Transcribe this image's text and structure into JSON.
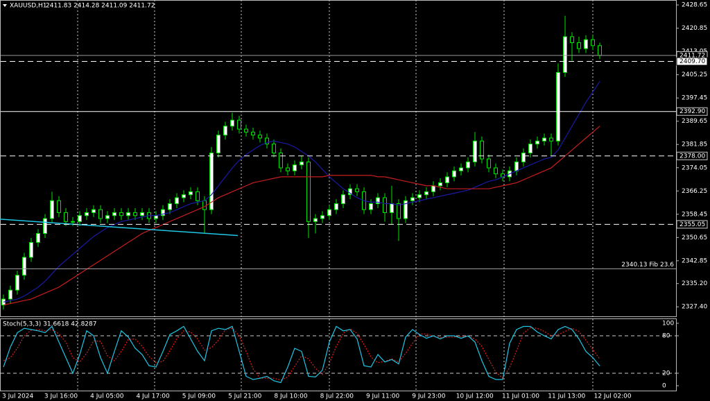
{
  "chart_data": {
    "type": "candlestick",
    "title": "XAUUSD,H1",
    "subtitle": "2411.83 2414.28 2411.09 2411.72",
    "up_color": "#ffffff",
    "down_color": "#000000",
    "wick_color": "#00e600",
    "ylim": [
      2324.2,
      2430.3
    ],
    "yticks": [
      2428.65,
      2420.85,
      2413.05,
      2405.25,
      2397.45,
      2389.65,
      2381.85,
      2374.05,
      2366.25,
      2358.45,
      2350.65,
      2342.85,
      {
        "value": 2335.2,
        "label": "2335.20"
      },
      {
        "value": 2327.4,
        "label": "2327.40"
      }
    ],
    "x_labels": [
      "3 Jul 2024",
      "3 Jul 16:00",
      "4 Jul 05:00",
      "4 Jul 17:00",
      "5 Jul 09:00",
      "5 Jul 21:00",
      "8 Jul 10:00",
      "8 Jul 22:00",
      "9 Jul 11:00",
      "9 Jul 23:00",
      "10 Jul 12:00",
      "11 Jul 01:00",
      "11 Jul 13:00",
      "12 Jul 02:00"
    ],
    "candles": {
      "open": [
        2328,
        2330,
        2333,
        2338,
        2344,
        2349,
        2352,
        2357,
        2363,
        2359,
        2356,
        2356,
        2358,
        2359,
        2360,
        2357,
        2358,
        2359,
        2358,
        2359,
        2358,
        2359,
        2357,
        2358,
        2360,
        2362,
        2364,
        2365,
        2366,
        2363,
        2360,
        2379,
        2385,
        2388,
        2390,
        2387,
        2386,
        2385,
        2384,
        2382,
        2379,
        2374,
        2373,
        2375,
        2376,
        2356,
        2357,
        2358,
        2360,
        2362,
        2365,
        2367,
        2366,
        2360,
        2362,
        2364,
        2359,
        2362,
        2357,
        2363,
        2364,
        2365,
        2366,
        2368,
        2369,
        2371,
        2373,
        2374,
        2376,
        2383,
        2377,
        2374,
        2372,
        2371,
        2373,
        2376,
        2379,
        2382,
        2383,
        2384,
        2383,
        2406,
        2418,
        2416,
        2414,
        2417,
        2415
      ],
      "high": [
        2331.5,
        2334.5,
        2339.5,
        2345.5,
        2350.5,
        2353.5,
        2358.5,
        2366,
        2364.5,
        2360.5,
        2357.5,
        2359.5,
        2360.5,
        2361.5,
        2361.5,
        2359.5,
        2360.5,
        2360.5,
        2360.5,
        2360.5,
        2360.5,
        2360.5,
        2359.5,
        2361.5,
        2363.5,
        2365.5,
        2366.5,
        2367.5,
        2367.5,
        2364.5,
        2381,
        2386.5,
        2389.5,
        2392.5,
        2391.5,
        2388.5,
        2387.5,
        2386.5,
        2385.5,
        2383.5,
        2380.5,
        2375.5,
        2376.5,
        2378,
        2377.5,
        2358.5,
        2359.5,
        2361.5,
        2363.5,
        2366.5,
        2368.5,
        2368.5,
        2367.5,
        2363.5,
        2365.5,
        2365.5,
        2368,
        2363.5,
        2364.5,
        2365.5,
        2366.5,
        2367.5,
        2369.5,
        2370.5,
        2372.5,
        2374.5,
        2375.5,
        2377.5,
        2386,
        2384.5,
        2378.5,
        2375.5,
        2373.5,
        2374.5,
        2377.5,
        2380.5,
        2383.5,
        2384.5,
        2385.5,
        2385.5,
        2409,
        2425,
        2419.5,
        2418,
        2418.5,
        2418.5,
        2416
      ],
      "low": [
        2326.5,
        2328.5,
        2331.5,
        2336.5,
        2342.5,
        2347.5,
        2350.5,
        2355.5,
        2357.5,
        2354.5,
        2354.5,
        2354.5,
        2356.5,
        2357.5,
        2355.5,
        2355.5,
        2356.5,
        2356.5,
        2356.5,
        2356.5,
        2356.5,
        2355.5,
        2355.5,
        2356.5,
        2358.5,
        2360.5,
        2362.5,
        2363.5,
        2361.5,
        2352,
        2358.5,
        2377.5,
        2383.5,
        2386.5,
        2385.5,
        2384.5,
        2383.5,
        2382.5,
        2380.5,
        2377.5,
        2372.5,
        2371.5,
        2371.5,
        2373.5,
        2350.5,
        2352,
        2355.5,
        2356.5,
        2358.5,
        2360.5,
        2363.5,
        2364.5,
        2358.5,
        2358.5,
        2360.5,
        2356,
        2355,
        2349.5,
        2355.5,
        2361.5,
        2362.5,
        2363.5,
        2364.5,
        2366.5,
        2367.5,
        2369.5,
        2371.5,
        2372.5,
        2374.5,
        2375.5,
        2372.5,
        2370.5,
        2369.5,
        2369.5,
        2371.5,
        2374.5,
        2377.5,
        2380.5,
        2381.5,
        2378,
        2381.5,
        2404.5,
        2410,
        2412.5,
        2412.5,
        2413.5,
        2410.5
      ],
      "close": [
        2330,
        2333,
        2338,
        2344,
        2349,
        2352,
        2357,
        2363,
        2359,
        2356,
        2356,
        2358,
        2359,
        2360,
        2357,
        2358,
        2359,
        2358,
        2359,
        2358,
        2359,
        2357,
        2358,
        2360,
        2362,
        2364,
        2365,
        2366,
        2363,
        2360,
        2379,
        2385,
        2388,
        2390,
        2387,
        2386,
        2385,
        2384,
        2382,
        2379,
        2374,
        2373,
        2375,
        2376,
        2356,
        2357,
        2358,
        2360,
        2362,
        2365,
        2367,
        2366,
        2360,
        2362,
        2364,
        2359,
        2362,
        2357,
        2363,
        2364,
        2365,
        2366,
        2368,
        2369,
        2371,
        2373,
        2374,
        2376,
        2383,
        2377,
        2374,
        2372,
        2371,
        2373,
        2376,
        2379,
        2382,
        2383,
        2384,
        2383,
        2406,
        2418,
        2416,
        2414,
        2417,
        2415,
        2411.72
      ]
    },
    "moving_averages": [
      {
        "color": "#1a1aa8",
        "values": [
          2329,
          2329.5,
          2330,
          2331,
          2332.5,
          2334,
          2336,
          2338.5,
          2341,
          2343,
          2345,
          2347,
          2349,
          2351,
          2352.5,
          2354,
          2355,
          2356,
          2356.5,
          2357,
          2357.5,
          2358,
          2358,
          2358.5,
          2359,
          2360,
          2361,
          2362,
          2362.5,
          2363,
          2365,
          2368,
          2371,
          2374,
          2376.5,
          2378.5,
          2380,
          2381.5,
          2382.5,
          2383,
          2382.5,
          2382,
          2381,
          2379.5,
          2378,
          2376,
          2373.5,
          2371,
          2369,
          2367,
          2365.5,
          2364,
          2363,
          2362.5,
          2362.5,
          2362,
          2362,
          2361.5,
          2362,
          2362.5,
          2363,
          2363.5,
          2364,
          2364.5,
          2365,
          2365.5,
          2366,
          2366.5,
          2367.5,
          2368.5,
          2369.5,
          2370,
          2371,
          2372,
          2373,
          2374,
          2375,
          2376,
          2377,
          2377.5,
          2380,
          2384,
          2388,
          2392,
          2396,
          2399.5,
          2403
        ]
      },
      {
        "color": "#c81e1e",
        "values": [
          2328,
          2328.5,
          2329,
          2329.5,
          2330,
          2331,
          2332,
          2333,
          2334,
          2335.5,
          2337,
          2338.5,
          2340,
          2341.5,
          2343,
          2344.5,
          2346,
          2347.5,
          2349,
          2350.5,
          2352,
          2353,
          2354,
          2355,
          2356,
          2357,
          2358,
          2359,
          2360,
          2361,
          2362.5,
          2364,
          2365,
          2366,
          2367,
          2368,
          2369,
          2369.5,
          2370,
          2370.5,
          2371,
          2371,
          2371,
          2371,
          2371,
          2371,
          2371,
          2371.5,
          2371.5,
          2371.5,
          2371.5,
          2371.5,
          2371.5,
          2371.5,
          2371,
          2371,
          2370.5,
          2370,
          2369.5,
          2369,
          2368.5,
          2368,
          2368,
          2367.5,
          2367,
          2367,
          2367,
          2367,
          2367,
          2367,
          2367,
          2367.5,
          2368,
          2368.5,
          2369,
          2370,
          2371,
          2372,
          2373,
          2374,
          2376,
          2378,
          2380,
          2382,
          2384,
          2386,
          2388
        ]
      }
    ],
    "trendline": {
      "color": "#1ec8e6",
      "values": [
        2356.8,
        2351.3
      ]
    },
    "levels": [
      {
        "value": 2411.72,
        "label": "2411.72",
        "style": "solid",
        "color": "#9a9a9a",
        "kind": "price-dark"
      },
      {
        "value": 2409.7,
        "label": "2409.70",
        "style": "dashed",
        "color": "#ffffff",
        "kind": "price-light"
      },
      {
        "value": 2392.9,
        "label": "2392.90",
        "style": "solid",
        "color": "#ffffff",
        "kind": "price-dark"
      },
      {
        "value": 2378,
        "label": "2378.00",
        "style": "dashed",
        "color": "#ffffff",
        "kind": "price-dark"
      },
      {
        "value": 2355.05,
        "label": "2355.05",
        "style": "dashed",
        "color": "#ffffff",
        "kind": "price-dark"
      },
      {
        "value": 2340.13,
        "label": "2340.13 Fib 23.6",
        "style": "solid",
        "color": "#9a9a9a",
        "kind": "fib"
      }
    ],
    "stochastic": {
      "title": "Stoch(5,3,3) 31.6618 42.8287",
      "ylim": [
        -7.8,
        107.8
      ],
      "yticks": [
        100,
        80,
        20,
        0
      ],
      "levels": [
        80,
        20
      ],
      "main": {
        "color": "#1ec8e6",
        "values": [
          30,
          62,
          85,
          92,
          90,
          88,
          85,
          95,
          70,
          45,
          20,
          50,
          88,
          80,
          45,
          20,
          55,
          88,
          78,
          60,
          50,
          32,
          30,
          55,
          82,
          88,
          95,
          75,
          55,
          40,
          88,
          92,
          90,
          95,
          55,
          15,
          10,
          12,
          15,
          8,
          5,
          30,
          60,
          55,
          15,
          14,
          25,
          70,
          95,
          88,
          90,
          75,
          32,
          30,
          50,
          38,
          42,
          35,
          78,
          90,
          82,
          76,
          80,
          75,
          80,
          80,
          76,
          80,
          70,
          40,
          15,
          10,
          10,
          68,
          90,
          95,
          95,
          86,
          80,
          75,
          90,
          95,
          90,
          75,
          55,
          45,
          31.6618
        ]
      },
      "signal": {
        "color": "#e02020",
        "values": [
          40,
          45,
          60,
          80,
          89,
          90,
          88,
          90,
          83,
          70,
          45,
          38,
          52,
          72,
          71,
          48,
          40,
          55,
          74,
          75,
          63,
          47,
          37,
          39,
          56,
          75,
          88,
          86,
          75,
          57,
          61,
          73,
          90,
          92,
          80,
          55,
          27,
          12,
          12,
          12,
          9,
          14,
          31,
          48,
          43,
          28,
          18,
          36,
          63,
          84,
          91,
          84,
          66,
          46,
          37,
          39,
          43,
          38,
          52,
          68,
          83,
          83,
          79,
          77,
          78,
          78,
          79,
          79,
          75,
          63,
          42,
          22,
          12,
          29,
          56,
          84,
          93,
          92,
          87,
          80,
          82,
          87,
          92,
          87,
          73,
          58,
          42.8287
        ]
      }
    }
  }
}
